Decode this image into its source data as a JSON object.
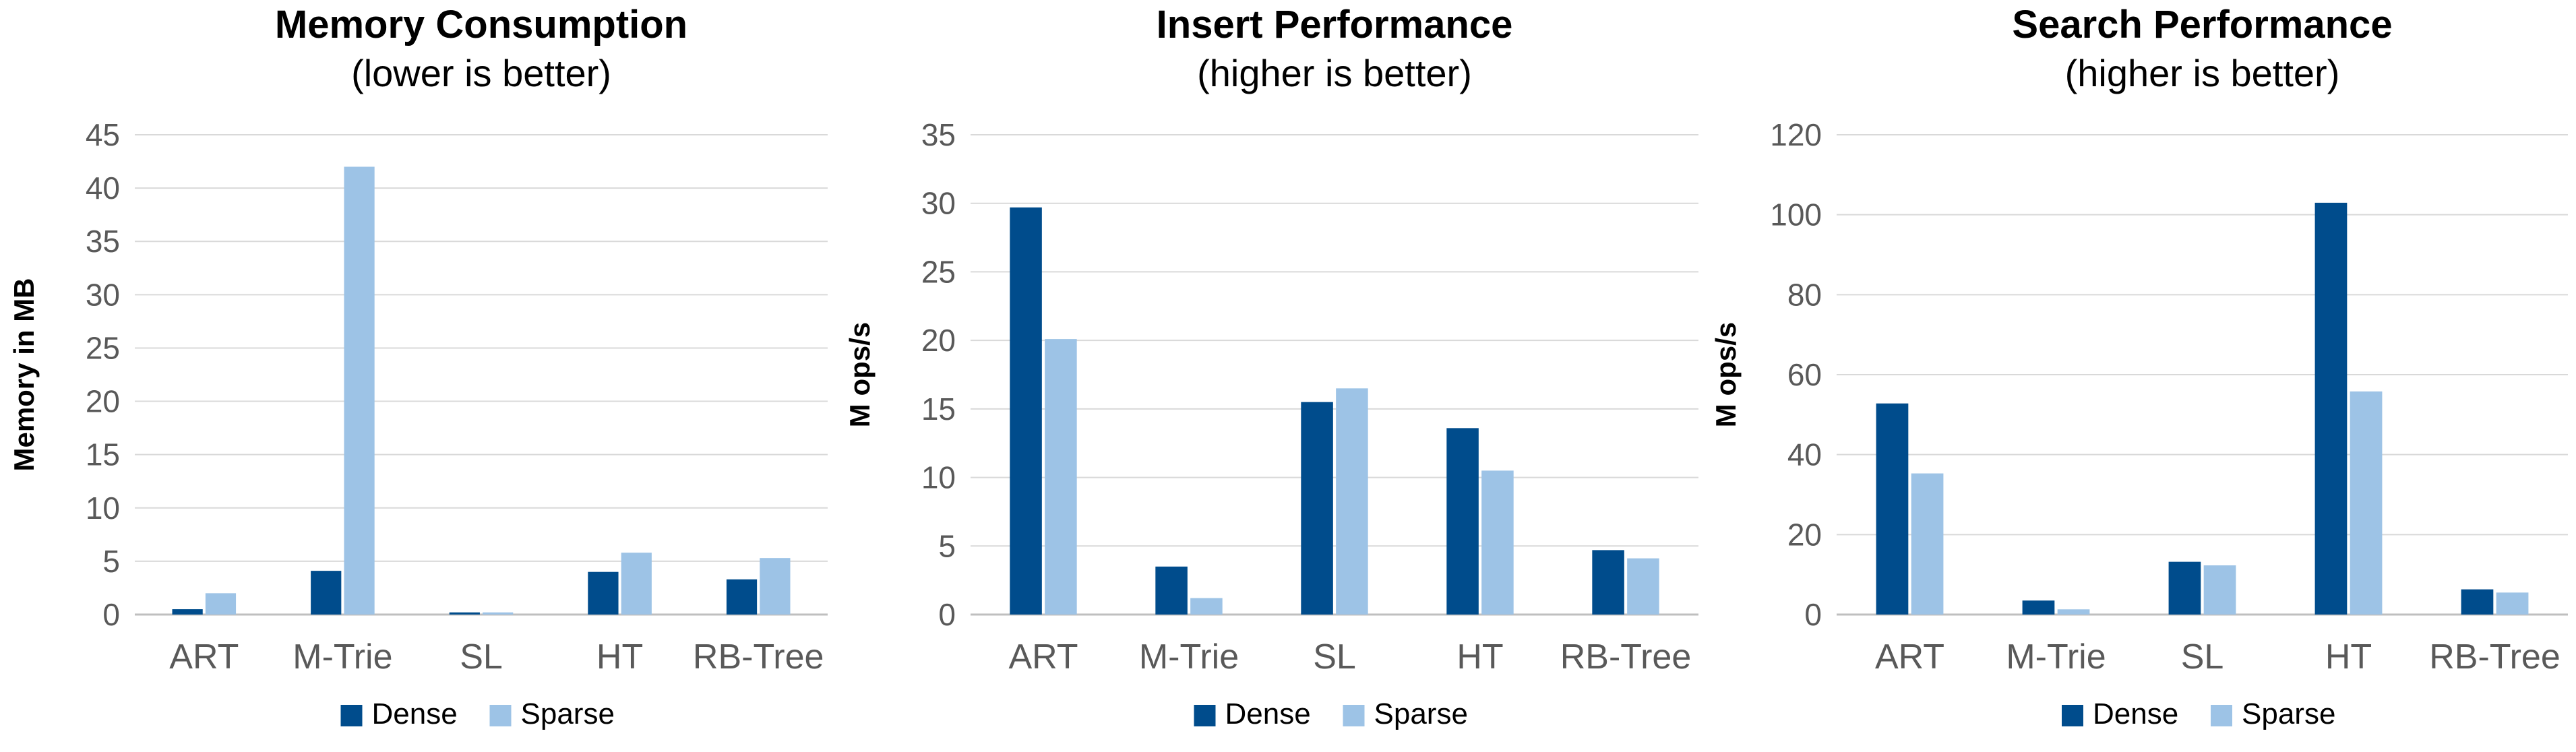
{
  "colors": {
    "dense": "#004C8C",
    "sparse": "#9DC3E6"
  },
  "chart_data": [
    {
      "type": "bar",
      "title": "Memory Consumption",
      "subtitle": "(lower is better)",
      "xlabel": "",
      "ylabel": "Memory in MB",
      "ylim": [
        0,
        45
      ],
      "yticks": [
        "0",
        "5",
        "10",
        "15",
        "20",
        "25",
        "30",
        "35",
        "40",
        "45"
      ],
      "categories": [
        "ART",
        "M-Trie",
        "SL",
        "HT",
        "RB-Tree"
      ],
      "series": [
        {
          "name": "Dense",
          "values": [
            0.5,
            4.1,
            0.2,
            4.0,
            3.3
          ]
        },
        {
          "name": "Sparse",
          "values": [
            2.0,
            42.0,
            0.2,
            5.8,
            5.3
          ]
        }
      ],
      "grid": true,
      "legend": "bottom"
    },
    {
      "type": "bar",
      "title": "Insert Performance",
      "subtitle": "(higher is better)",
      "xlabel": "",
      "ylabel": "M ops/s",
      "ylim": [
        0,
        35
      ],
      "yticks": [
        "0",
        "5",
        "10",
        "15",
        "20",
        "25",
        "30",
        "35"
      ],
      "categories": [
        "ART",
        "M-Trie",
        "SL",
        "HT",
        "RB-Tree"
      ],
      "series": [
        {
          "name": "Dense",
          "values": [
            29.7,
            3.5,
            15.5,
            13.6,
            4.7
          ]
        },
        {
          "name": "Sparse",
          "values": [
            20.1,
            1.2,
            16.5,
            10.5,
            4.1
          ]
        }
      ],
      "grid": true,
      "legend": "bottom"
    },
    {
      "type": "bar",
      "title": "Search Performance",
      "subtitle": "(higher is better)",
      "xlabel": "",
      "ylabel": "M ops/s",
      "ylim": [
        0,
        120
      ],
      "yticks": [
        "0",
        "20",
        "40",
        "60",
        "80",
        "100",
        "120"
      ],
      "categories": [
        "ART",
        "M-Trie",
        "SL",
        "HT",
        "RB-Tree"
      ],
      "series": [
        {
          "name": "Dense",
          "values": [
            52.8,
            3.5,
            13.2,
            103.0,
            6.3
          ]
        },
        {
          "name": "Sparse",
          "values": [
            35.3,
            1.3,
            12.3,
            55.8,
            5.5
          ]
        }
      ],
      "grid": true,
      "legend": "bottom"
    }
  ]
}
